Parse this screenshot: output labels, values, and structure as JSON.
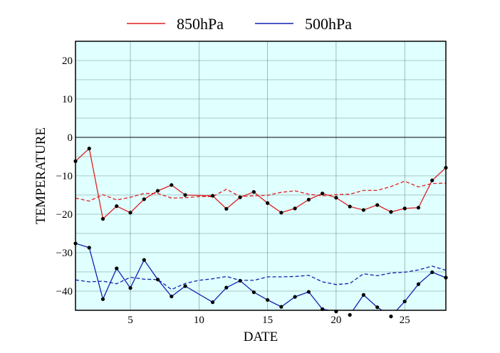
{
  "chart_data": {
    "type": "line",
    "title": "",
    "xlabel": "DATE",
    "ylabel": "TEMPERATURE",
    "xlim": [
      1,
      28
    ],
    "ylim": [
      -45,
      25
    ],
    "x_ticks": [
      5,
      10,
      15,
      20,
      25
    ],
    "y_ticks": [
      20,
      10,
      0,
      -10,
      -20,
      -30,
      -40
    ],
    "grid": true,
    "background": "#e0ffff",
    "legend": {
      "placement": "top-center",
      "entries": [
        "850hPa",
        "500hPa"
      ]
    },
    "zero_line": 0,
    "series": [
      {
        "name": "850hPa",
        "color": "#e02020",
        "style": "solid",
        "markers": true,
        "x": [
          1,
          2,
          3,
          4,
          5,
          6,
          7,
          8,
          9,
          11,
          12,
          13,
          14,
          15,
          16,
          17,
          18,
          19,
          20,
          21,
          22,
          23,
          24,
          25,
          26,
          27,
          28
        ],
        "values": [
          -6.2,
          -2.9,
          -21.2,
          -17.9,
          -19.6,
          -16.1,
          -13.9,
          -12.4,
          -15.0,
          -15.2,
          -18.6,
          -15.6,
          -14.2,
          -17.1,
          -19.6,
          -18.5,
          -16.2,
          -14.6,
          -15.7,
          -18.0,
          -18.9,
          -17.6,
          -19.4,
          -18.5,
          -18.3,
          -11.2,
          -7.9
        ]
      },
      {
        "name": "",
        "color": "#e02020",
        "style": "dashed",
        "markers": false,
        "x": [
          1,
          2,
          3,
          4,
          5,
          6,
          7,
          8,
          9,
          10,
          11,
          12,
          13,
          14,
          15,
          16,
          17,
          18,
          19,
          20,
          21,
          22,
          23,
          24,
          25,
          26,
          27,
          28
        ],
        "values": [
          -15.8,
          -16.6,
          -14.9,
          -16.3,
          -15.6,
          -14.6,
          -14.6,
          -15.8,
          -15.7,
          -15.4,
          -15.4,
          -13.5,
          -15.4,
          -15.2,
          -15.1,
          -14.3,
          -13.9,
          -14.8,
          -15.2,
          -14.9,
          -14.8,
          -13.8,
          -13.8,
          -12.8,
          -11.4,
          -12.9,
          -12.0,
          -11.9
        ]
      },
      {
        "name": "500hPa",
        "color": "#1020b0",
        "style": "solid",
        "markers": true,
        "x": [
          1,
          2,
          3,
          4,
          5,
          6,
          7,
          8,
          9,
          11,
          12,
          13,
          14,
          15,
          16,
          17,
          18,
          19,
          20,
          21,
          22,
          23,
          24,
          25,
          26,
          27,
          28
        ],
        "values": [
          -27.6,
          -28.7,
          -42.1,
          -34.1,
          -39.2,
          -31.9,
          -37.0,
          -41.4,
          -38.7,
          -42.9,
          -39.1,
          -37.3,
          -40.3,
          -42.3,
          -44.1,
          -41.5,
          -40.2,
          -44.7,
          -45.3,
          -46.2,
          -41.0,
          -44.2,
          -46.6,
          -42.7,
          -38.2,
          -35.1,
          -36.5
        ]
      },
      {
        "name": "",
        "color": "#1020b0",
        "style": "dashed",
        "markers": false,
        "x": [
          1,
          2,
          3,
          4,
          5,
          6,
          7,
          8,
          9,
          10,
          11,
          12,
          13,
          14,
          15,
          16,
          17,
          18,
          19,
          20,
          21,
          22,
          23,
          24,
          25,
          26,
          27,
          28
        ],
        "values": [
          -37.1,
          -37.6,
          -37.4,
          -38.1,
          -36.4,
          -36.9,
          -37.0,
          -39.6,
          -38.0,
          -37.2,
          -36.8,
          -36.2,
          -37.2,
          -37.2,
          -36.3,
          -36.3,
          -36.2,
          -35.9,
          -37.6,
          -38.3,
          -38.0,
          -35.5,
          -36.0,
          -35.3,
          -35.1,
          -34.5,
          -33.5,
          -34.6
        ]
      }
    ]
  }
}
